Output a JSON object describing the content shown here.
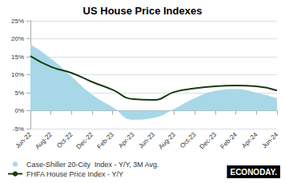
{
  "chart_data": {
    "type": "line",
    "title": "US House Price Indexes",
    "categories": [
      "Jun-22",
      "Aug-22",
      "Oct-22",
      "Dec-22",
      "Feb-23",
      "Apr-23",
      "Jun-23",
      "Aug-23",
      "Oct-23",
      "Dec-23",
      "Feb-24",
      "Apr-24",
      "Jun-24"
    ],
    "series": [
      {
        "name": "Case-Shiller 20-City  Index - Y/Y, 3M Avg.",
        "type": "area",
        "color": "#a8d8e8",
        "values": [
          18.5,
          14.5,
          9.5,
          4.5,
          1.0,
          -2.5,
          -2.0,
          0.5,
          3.5,
          5.5,
          6.0,
          5.0,
          3.5
        ]
      },
      {
        "name": "FHFA House Price Index - Y/Y",
        "type": "line",
        "color": "#1a3a10",
        "values": [
          15.2,
          12.2,
          10.5,
          8.0,
          5.8,
          3.2,
          3.0,
          5.2,
          6.2,
          6.8,
          7.0,
          6.8,
          5.6
        ]
      }
    ],
    "ylim": [
      -5,
      25
    ],
    "yticks": [
      {
        "value": -5,
        "label": "-5%"
      },
      {
        "value": 0,
        "label": "0%"
      },
      {
        "value": 5,
        "label": "5%"
      },
      {
        "value": 10,
        "label": "10%"
      },
      {
        "value": 15,
        "label": "15%"
      },
      {
        "value": 20,
        "label": "20%"
      },
      {
        "value": 25,
        "label": "25%"
      }
    ],
    "grid": true,
    "legend": "lower left",
    "annotations": [
      "ECONODAY."
    ]
  }
}
